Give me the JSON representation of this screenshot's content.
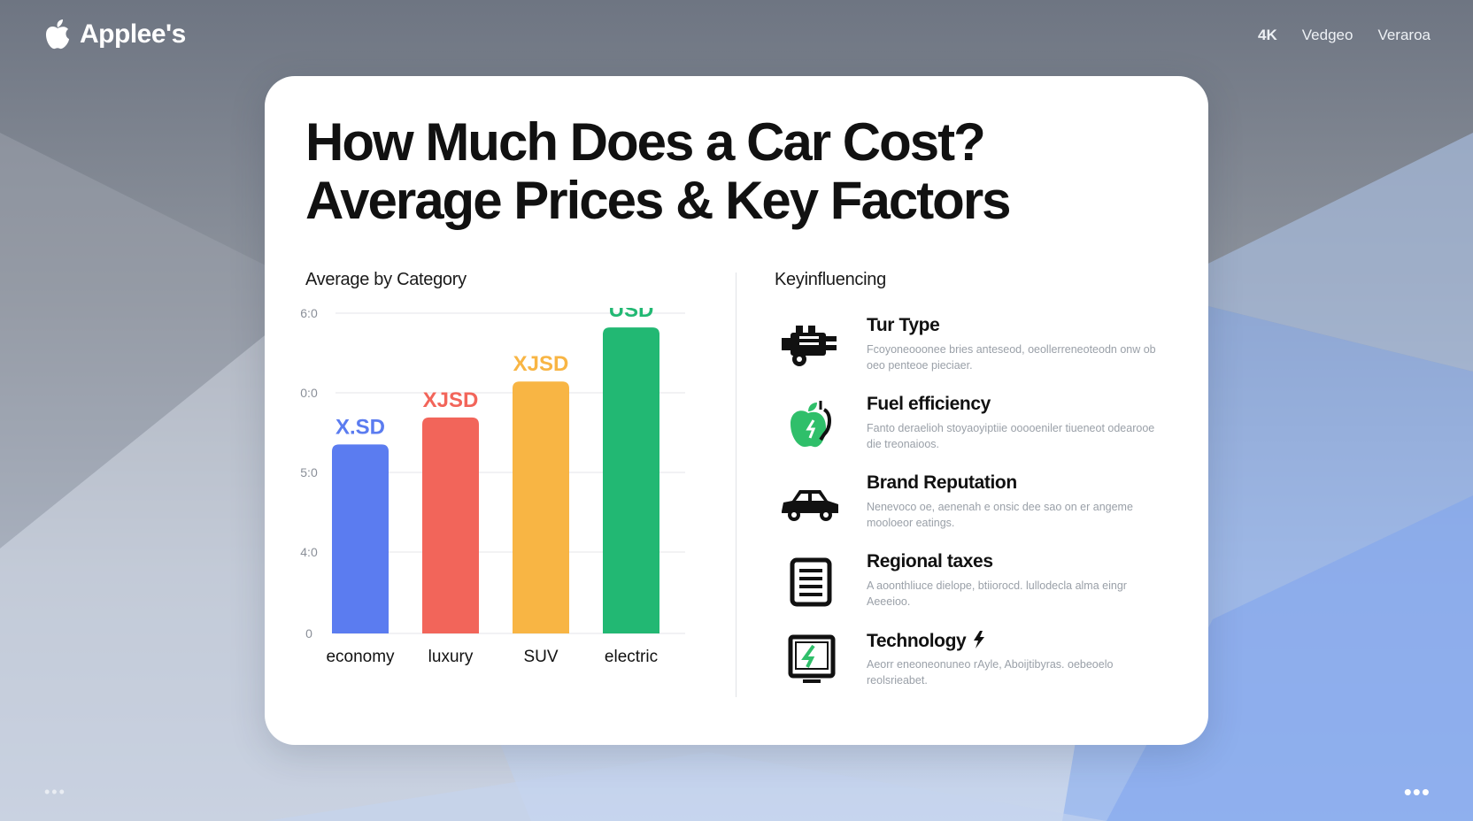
{
  "header": {
    "brand": "Applee's",
    "nav": [
      "4K",
      "Vedgeo",
      "Veraroa"
    ]
  },
  "card": {
    "title_line1": "How Much Does a Car Cost?",
    "title_line2": "Average Prices & Key Factors",
    "chart_section_label": "Average by Category",
    "factors_section_label": "Keyinfluencing"
  },
  "chart_data": {
    "type": "bar",
    "categories": [
      "economy",
      "luxury",
      "SUV",
      "electric"
    ],
    "values": [
      420,
      480,
      560,
      680
    ],
    "data_labels": [
      "X.SD",
      "XJSD",
      "XJSD",
      "USD"
    ],
    "colors": [
      "#5b7cf0",
      "#f2655a",
      "#f8b544",
      "#22b873"
    ],
    "y_tick_labels": [
      "0",
      "4:0",
      "5:0",
      "0:0",
      "6:0"
    ],
    "ylim": [
      0,
      700
    ],
    "grid": true
  },
  "factors": [
    {
      "title": "Tur Type",
      "desc": "Fcoyoneooonee bries anteseod, oeollerreneoteodn onw ob oeo penteoe pieciaer.",
      "icon": "engine-icon"
    },
    {
      "title": "Fuel efficiency",
      "desc": "Fanto deraelioh stoyaoyiptiie ooooeniler tiueneot odearooe die treonaioos.",
      "icon": "apple-icon"
    },
    {
      "title": "Brand Reputation",
      "desc": "Nenevoco oe, aenenah e onsic dee sao on er angeme mooloeor eatings.",
      "icon": "car-icon"
    },
    {
      "title": "Regional taxes",
      "desc": "A aoonthliuce dielope, btiiorocd. lullodecla alma eingr Aeeeioo.",
      "icon": "document-icon"
    },
    {
      "title": "Technology",
      "desc": "Aeorr eneoneonuneo rAyle, Aboijtibyras. oebeoelo reolsrieabet.",
      "icon": "monitor-bolt-icon"
    }
  ],
  "footer": {
    "dots_left": "•••",
    "dots_right": "•••"
  }
}
